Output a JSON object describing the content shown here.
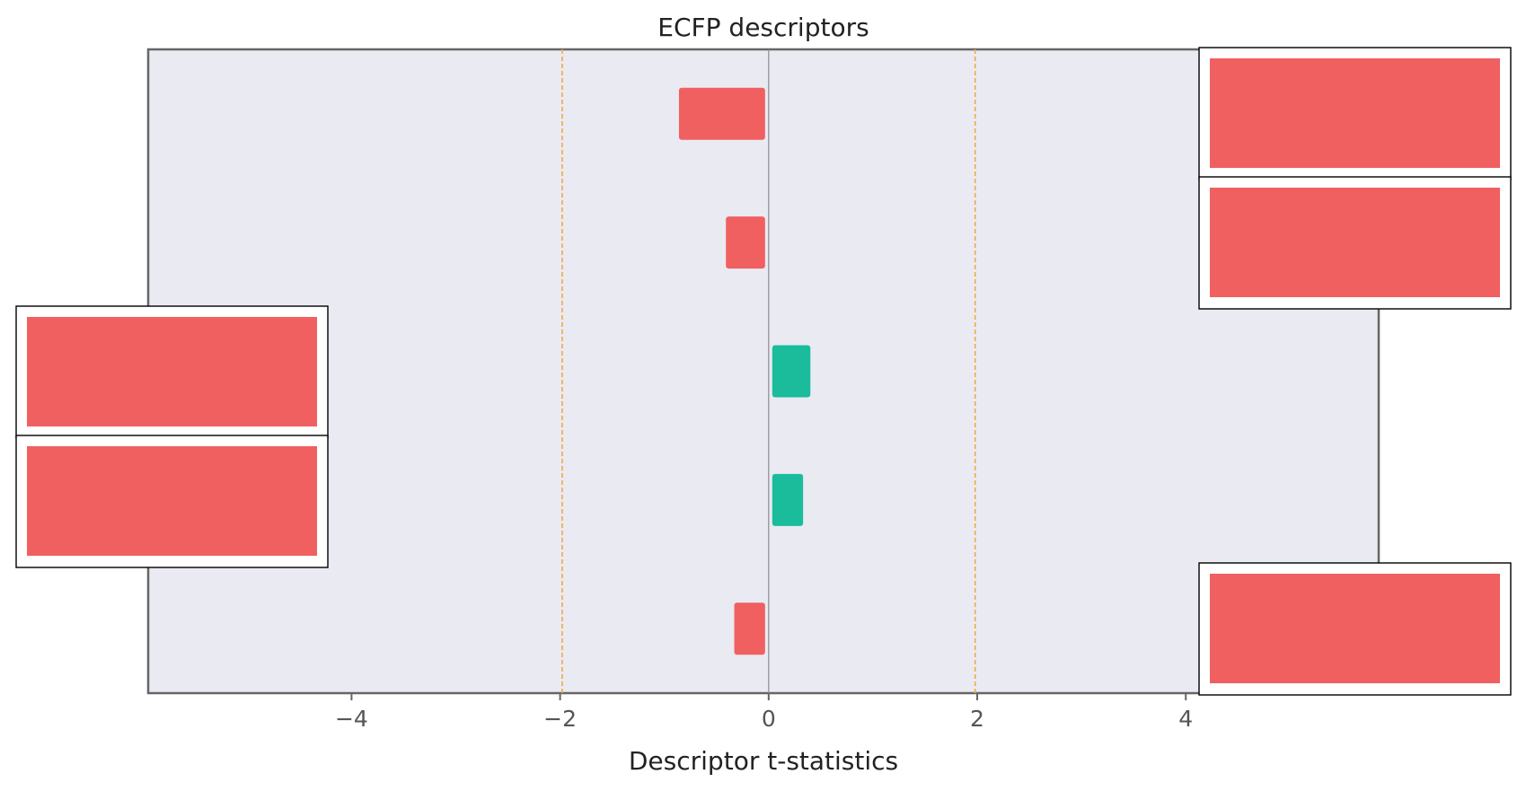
{
  "chart_data": {
    "type": "bar",
    "orientation": "horizontal",
    "title": "ECFP descriptors",
    "xlabel": "Descriptor t-statistics",
    "ylabel": "",
    "xlim": [
      -5.95,
      5.85
    ],
    "xticks": [
      -4,
      -2,
      0,
      2,
      4
    ],
    "xtick_labels": [
      "−4",
      "−2",
      "0",
      "2",
      "4"
    ],
    "thresholds": [
      -1.98,
      1.98
    ],
    "grid": false,
    "values": [
      -0.86,
      -0.41,
      0.4,
      0.33,
      -0.33
    ],
    "category_image_count": 5,
    "colors": {
      "negative": "#f06060",
      "positive": "#1abc9c",
      "threshold": "#f5a742",
      "zero_line": "#8c8c8c",
      "plot_background": "#eaeaf2",
      "spine": "#666666"
    }
  }
}
